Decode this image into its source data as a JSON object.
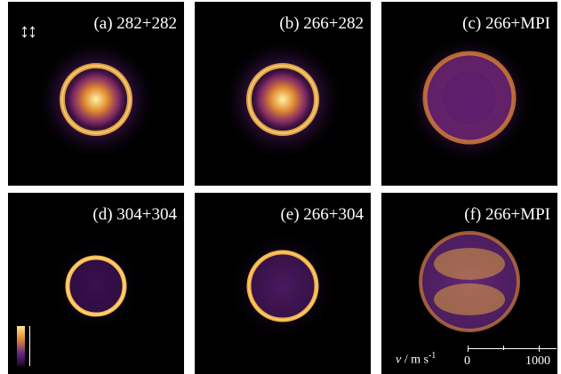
{
  "panels": [
    {
      "label": "(a) 282+282"
    },
    {
      "label": "(b) 266+282"
    },
    {
      "label": "(c) 266+MPI"
    },
    {
      "label": "(d) 304+304"
    },
    {
      "label": "(e) 266+304"
    },
    {
      "label": "(f) 266+MPI"
    }
  ],
  "scale": {
    "var": "v",
    "unit": "/ m s",
    "exp": "-1",
    "tick0": "0",
    "tick1": "1000"
  },
  "colors": {
    "background": "#000000",
    "ring": "#f0b040",
    "halo": "#5a1d6e",
    "center": "#ffe68a"
  },
  "icons": {
    "polarization": "double-vertical-arrow-icon"
  }
}
